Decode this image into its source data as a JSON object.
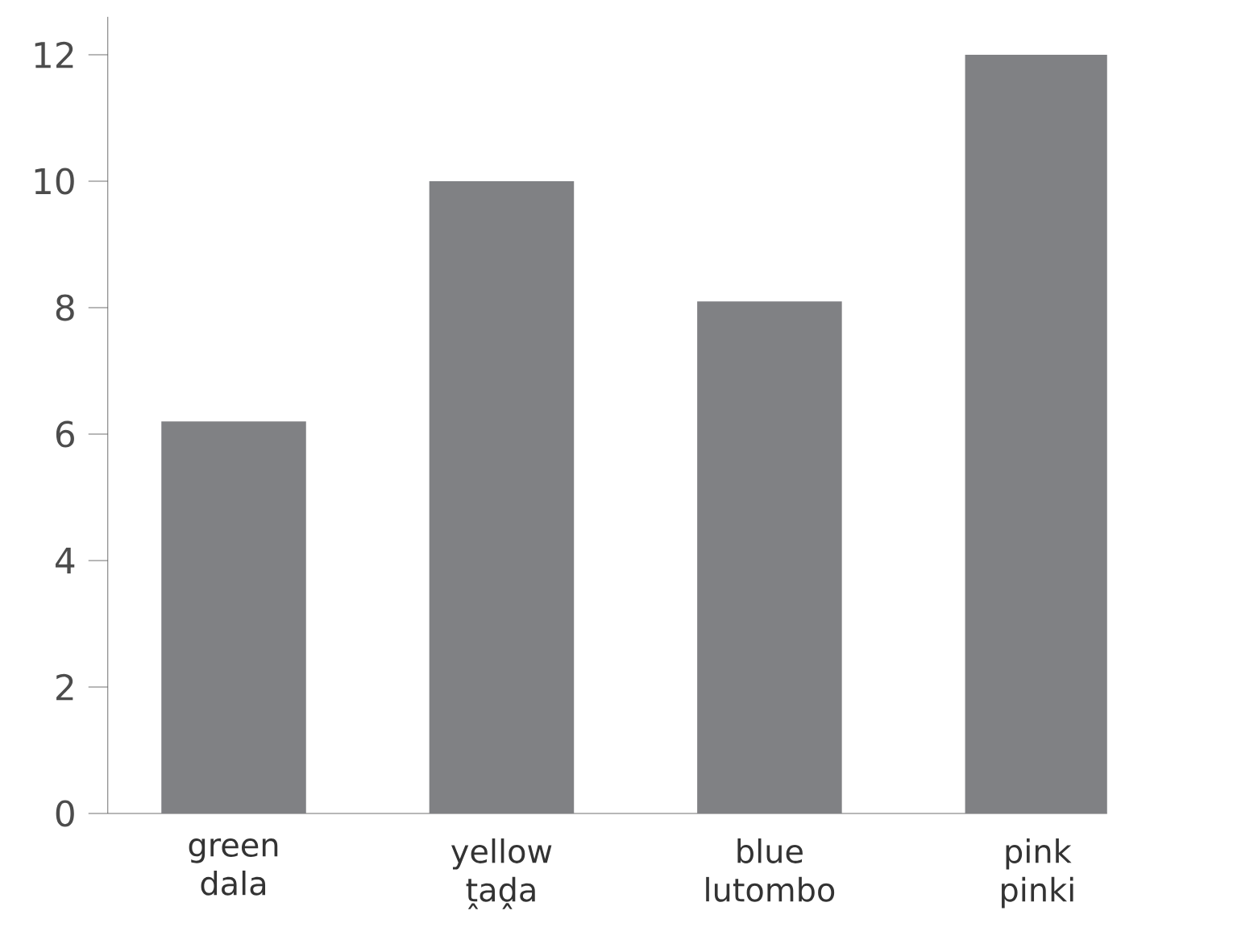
{
  "chart_data": {
    "type": "bar",
    "categories": [
      "green dala",
      "yellow ṱaḓa",
      "blue lutombo",
      "pink pinki"
    ],
    "values": [
      6.2,
      10,
      8.1,
      12
    ],
    "color": "#808184",
    "ylim": [
      0,
      12.6
    ],
    "yticks": [
      0,
      2,
      4,
      6,
      8,
      10,
      12
    ]
  }
}
